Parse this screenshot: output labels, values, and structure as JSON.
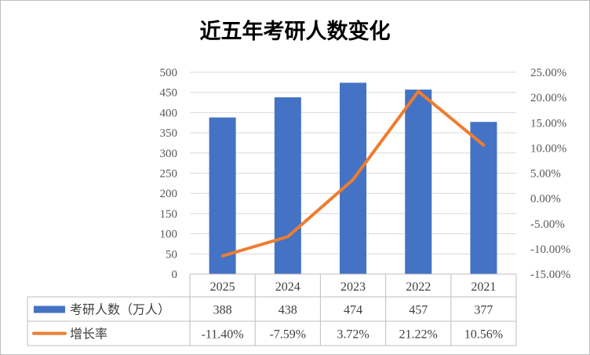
{
  "chart_data": {
    "type": "bar",
    "title": "近五年考研人数变化",
    "categories": [
      "2025",
      "2024",
      "2023",
      "2022",
      "2021"
    ],
    "series": [
      {
        "name": "考研人数（万人）",
        "type": "bar",
        "axis": "left",
        "values": [
          388,
          438,
          474,
          457,
          377
        ],
        "labels": [
          "388",
          "438",
          "474",
          "457",
          "377"
        ],
        "color": "#4472C4"
      },
      {
        "name": "增长率",
        "type": "line",
        "axis": "right",
        "values": [
          -11.4,
          -7.59,
          3.72,
          21.22,
          10.56
        ],
        "labels": [
          "-11.40%",
          "-7.59%",
          "3.72%",
          "21.22%",
          "10.56%"
        ],
        "color": "#ED7D31"
      }
    ],
    "y_left": {
      "min": 0,
      "max": 500,
      "step": 50,
      "ticks": [
        "0",
        "50",
        "100",
        "150",
        "200",
        "250",
        "300",
        "350",
        "400",
        "450",
        "500"
      ]
    },
    "y_right": {
      "min": -15,
      "max": 25,
      "step": 5,
      "ticks": [
        "-15.00%",
        "-10.00%",
        "-5.00%",
        "0.00%",
        "5.00%",
        "10.00%",
        "15.00%",
        "20.00%",
        "25.00%"
      ]
    },
    "gridlines": true,
    "data_table": true,
    "legend": "in-data-table"
  }
}
